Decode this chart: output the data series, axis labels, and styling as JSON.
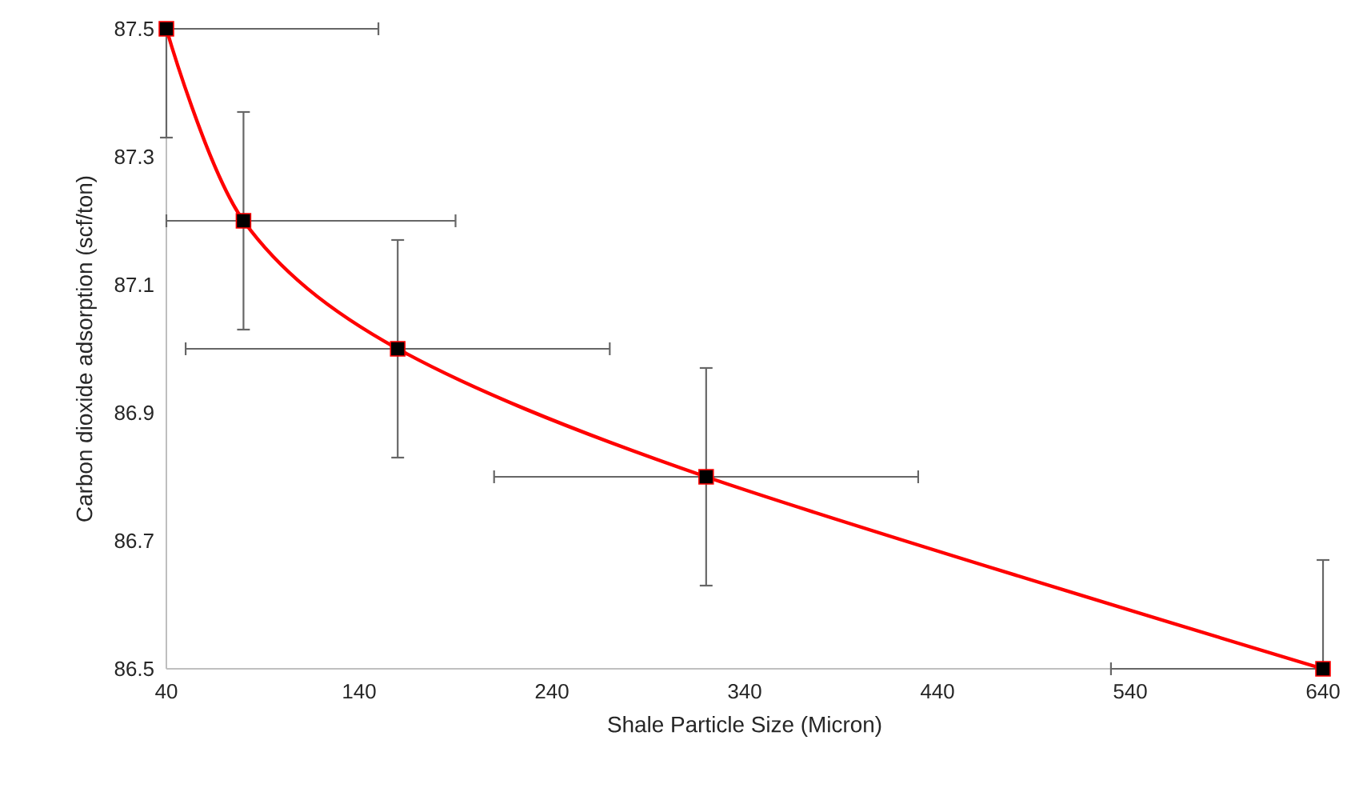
{
  "chart_data": {
    "type": "line",
    "xlabel": "Shale Particle Size (Micron)",
    "ylabel": "Carbon dioxide adsorption (scf/ton)",
    "x": [
      40,
      80,
      160,
      320,
      640
    ],
    "series": [
      {
        "color": "#ff0000",
        "values": [
          87.5,
          87.2,
          87.0,
          86.8,
          86.5
        ],
        "errors": [
          [
            87.33,
            87.5
          ],
          [
            87.03,
            87.37
          ],
          [
            86.83,
            87.17
          ],
          [
            86.63,
            86.97
          ],
          [
            86.5,
            86.67
          ]
        ],
        "xerrors": [
          [
            40,
            150
          ],
          [
            40,
            190
          ],
          [
            50,
            270
          ],
          [
            210,
            430
          ],
          [
            530,
            640
          ]
        ]
      }
    ],
    "xlim": [
      40,
      640
    ],
    "ylim": [
      86.5,
      87.5
    ],
    "xticks": [
      40,
      140,
      240,
      340,
      440,
      540,
      640
    ],
    "yticks": [
      {
        "value": 86.5,
        "label": "86.5"
      },
      {
        "value": 86.7,
        "label": "86.7"
      },
      {
        "value": 86.9,
        "label": "86.9"
      },
      {
        "value": 87.1,
        "label": "87.1"
      },
      {
        "value": 87.3,
        "label": "87.3"
      },
      {
        "value": 87.5,
        "label": "87.5"
      }
    ],
    "marker": "square",
    "line_style": "solid",
    "grid": false
  }
}
